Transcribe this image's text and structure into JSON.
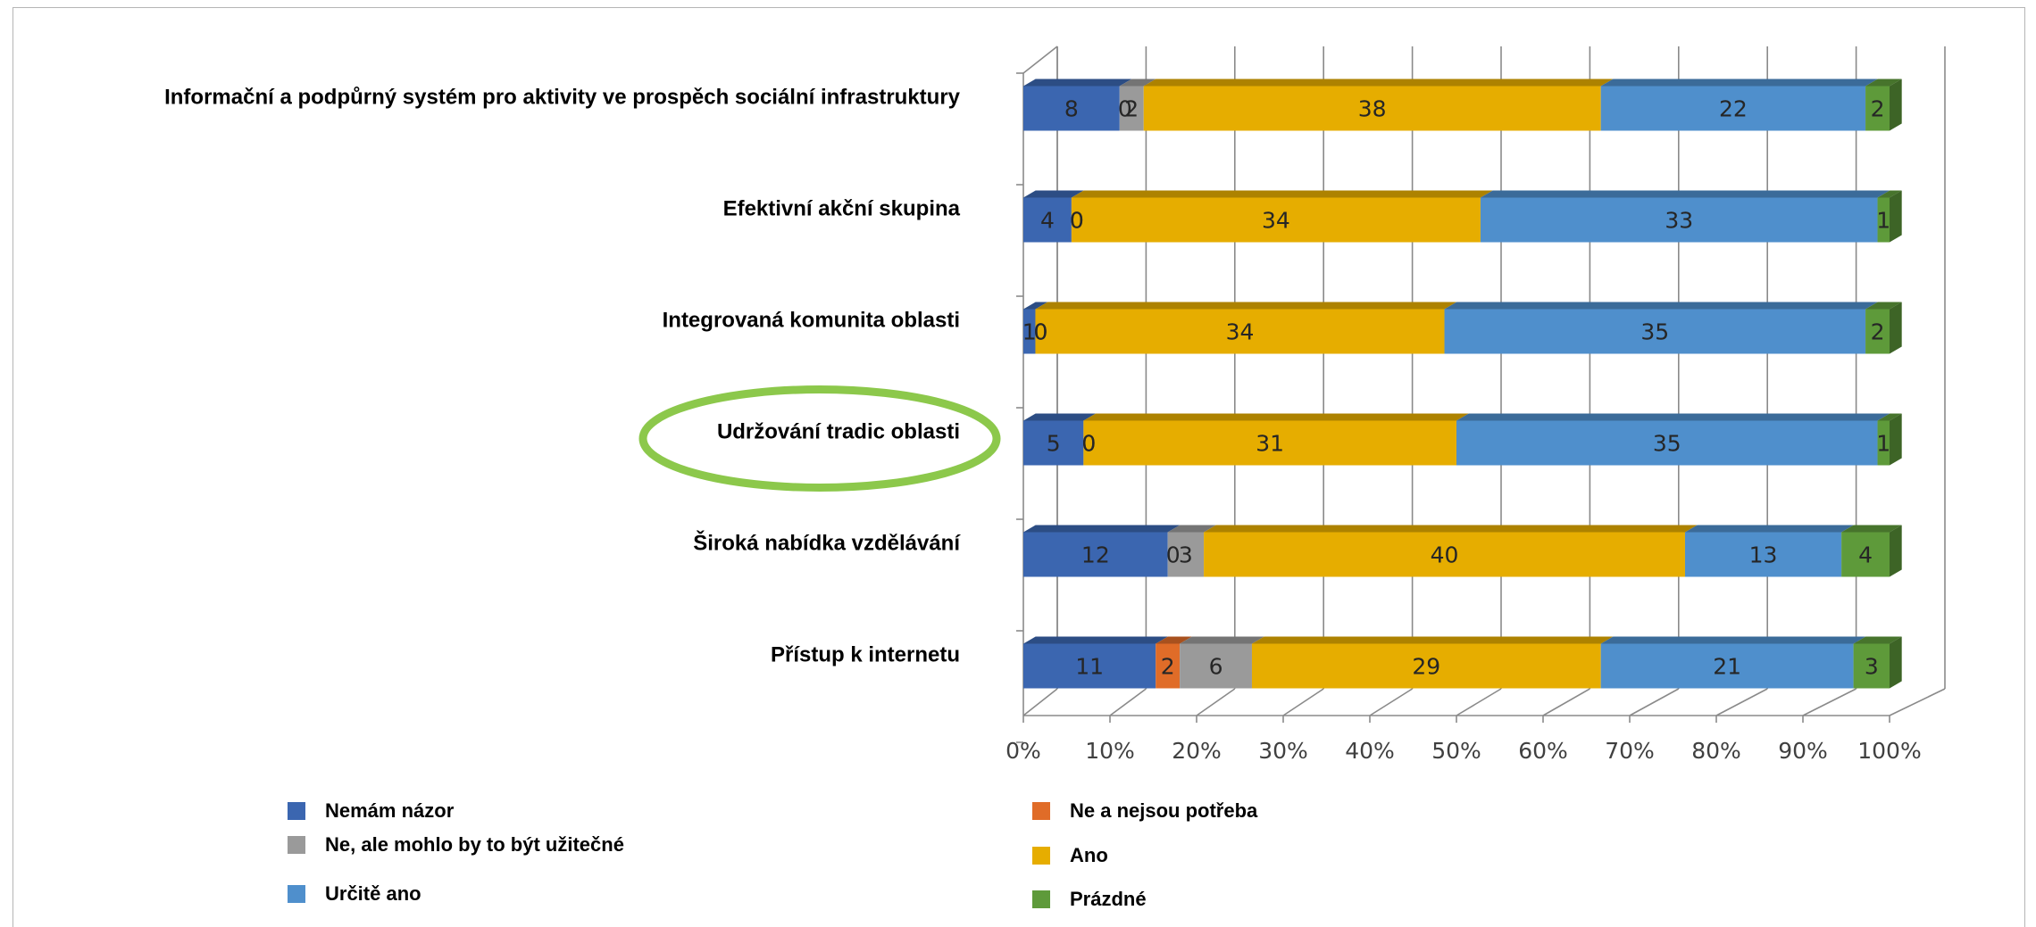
{
  "chart_data": {
    "type": "bar",
    "orientation": "horizontal",
    "stacked": "percent",
    "three_d": true,
    "categories": [
      "Informační a podpůrný systém pro aktivity ve prospěch sociální infrastruktury",
      "Efektivní akční skupina",
      "Integrovaná komunita oblasti",
      "Udržování tradic oblasti",
      "Široká nabídka vzdělávání",
      "Přístup k internetu"
    ],
    "highlighted_category": "Udržování tradic oblasti",
    "series": [
      {
        "name": "Nemám názor",
        "color": "#3b66b0",
        "values": [
          8,
          4,
          1,
          5,
          12,
          11
        ]
      },
      {
        "name": "Ne a nejsou potřeba",
        "color": "#e06c28",
        "values": [
          0,
          0,
          0,
          0,
          0,
          2
        ]
      },
      {
        "name": "Ne, ale mohlo by to být užitečné",
        "color": "#9a9a9a",
        "values": [
          2,
          0,
          0,
          0,
          3,
          6
        ]
      },
      {
        "name": "Ano",
        "color": "#e6ad00",
        "values": [
          38,
          34,
          34,
          31,
          40,
          29
        ]
      },
      {
        "name": "Určitě ano",
        "color": "#4f8fcc",
        "values": [
          22,
          33,
          35,
          35,
          13,
          21
        ]
      },
      {
        "name": "Prázdné",
        "color": "#5e9a3a",
        "values": [
          2,
          1,
          2,
          1,
          4,
          3
        ]
      }
    ],
    "x_ticks": [
      "0%",
      "10%",
      "20%",
      "30%",
      "40%",
      "50%",
      "60%",
      "70%",
      "80%",
      "90%",
      "100%"
    ],
    "xlim": [
      0,
      100
    ],
    "grid": true,
    "legend_position": "bottom",
    "highlight_color": "#8cc84b"
  }
}
